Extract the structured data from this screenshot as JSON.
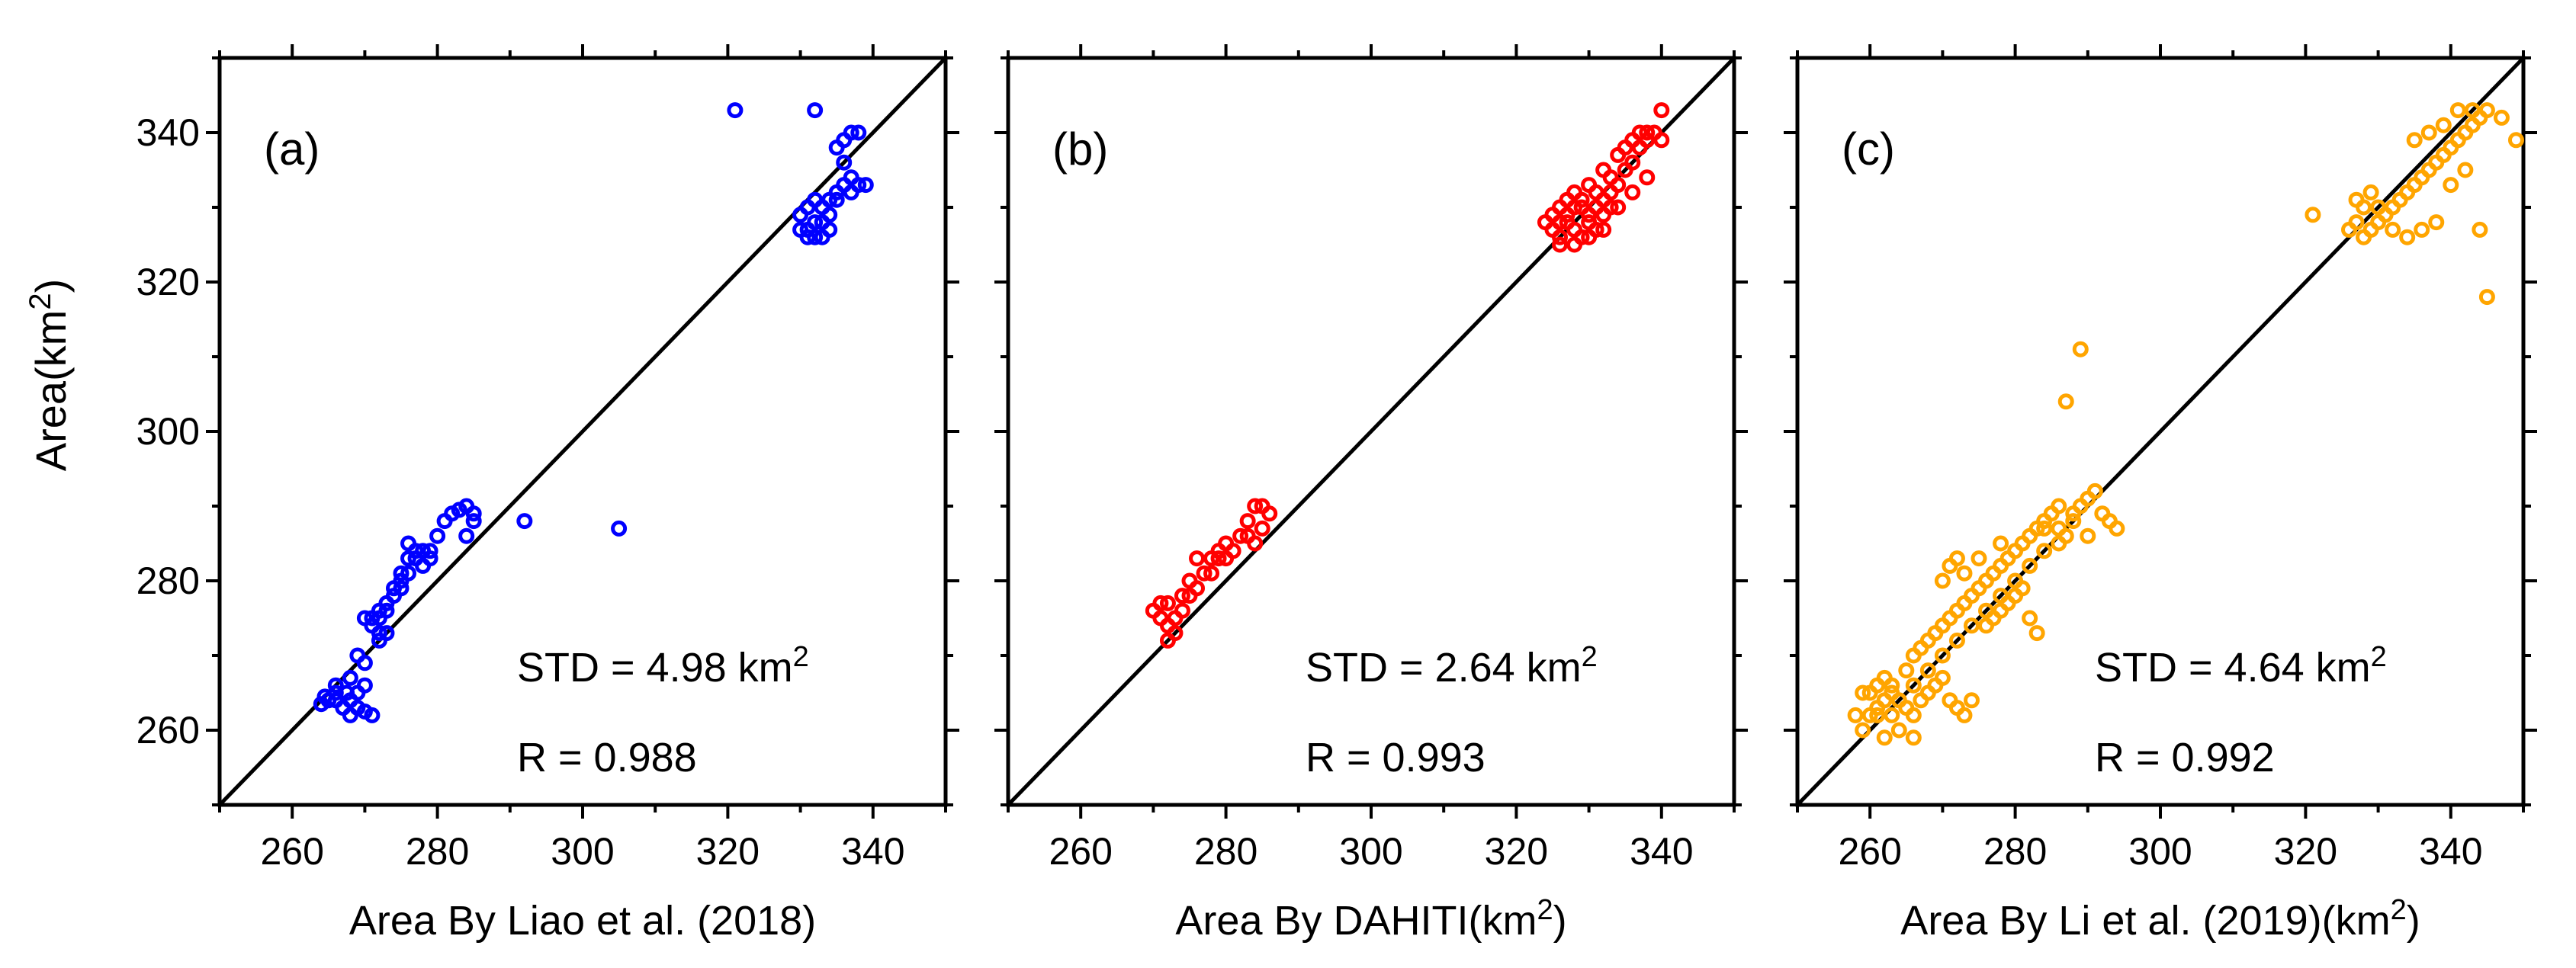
{
  "figure": {
    "ylabel_main": "Area(km",
    "ylabel_sup": "2",
    "ylabel_tail": ")"
  },
  "chart_data": [
    {
      "type": "scatter",
      "panel_label": "(a)",
      "xlabel_main": "Area By Liao et al. (2018)",
      "xlabel_sup": "",
      "xlabel_tail": "",
      "ylabel": "Area(km2)",
      "xlim": [
        250,
        350
      ],
      "ylim": [
        250,
        350
      ],
      "xticks": [
        "260",
        "280",
        "300",
        "320",
        "340"
      ],
      "yticks": [
        "260",
        "280",
        "300",
        "320",
        "340"
      ],
      "marker_color": "#0000ff",
      "stats": {
        "std_text": "STD = 4.98 km",
        "std_sup": "2",
        "r_text": "R = 0.988"
      },
      "points": [
        [
          264,
          263.5
        ],
        [
          265,
          264
        ],
        [
          266,
          265
        ],
        [
          264.5,
          264.5
        ],
        [
          267,
          263
        ],
        [
          268,
          262
        ],
        [
          269,
          263
        ],
        [
          270,
          262.5
        ],
        [
          267.5,
          265
        ],
        [
          269,
          265
        ],
        [
          270,
          266
        ],
        [
          271,
          262
        ],
        [
          268,
          267
        ],
        [
          266,
          264
        ],
        [
          272,
          272
        ],
        [
          271,
          274
        ],
        [
          272,
          276
        ],
        [
          270,
          275
        ],
        [
          273,
          273
        ],
        [
          274,
          278
        ],
        [
          275,
          280
        ],
        [
          276,
          281
        ],
        [
          277,
          283
        ],
        [
          278,
          282
        ],
        [
          279,
          284
        ],
        [
          280,
          286
        ],
        [
          282,
          289
        ],
        [
          283,
          289.5
        ],
        [
          284,
          290
        ],
        [
          285,
          289
        ],
        [
          285,
          288
        ],
        [
          276,
          285
        ],
        [
          271,
          275
        ],
        [
          272,
          275
        ],
        [
          273,
          277
        ],
        [
          274,
          279
        ],
        [
          275,
          279
        ],
        [
          277,
          284
        ],
        [
          281,
          288
        ],
        [
          284,
          286
        ],
        [
          292,
          288
        ],
        [
          305,
          287
        ],
        [
          321,
          343
        ],
        [
          332,
          343
        ],
        [
          330,
          327
        ],
        [
          331,
          326
        ],
        [
          332,
          328
        ],
        [
          333,
          330
        ],
        [
          334,
          329
        ],
        [
          332,
          331
        ],
        [
          331,
          327
        ],
        [
          330,
          329
        ],
        [
          333,
          326
        ],
        [
          334,
          327
        ],
        [
          335,
          332
        ],
        [
          336,
          333
        ],
        [
          337,
          334
        ],
        [
          338,
          333
        ],
        [
          339,
          333
        ],
        [
          335,
          338
        ],
        [
          336,
          339
        ],
        [
          337,
          340
        ],
        [
          338,
          340
        ],
        [
          336,
          336
        ],
        [
          334,
          331
        ],
        [
          331,
          330
        ],
        [
          332,
          326
        ],
        [
          333,
          328
        ],
        [
          335,
          331
        ],
        [
          337,
          332
        ],
        [
          278,
          284
        ],
        [
          279,
          283
        ],
        [
          276,
          283
        ],
        [
          273,
          276
        ],
        [
          272,
          273
        ],
        [
          270,
          269
        ],
        [
          269,
          270
        ],
        [
          266,
          266
        ],
        [
          268,
          264
        ],
        [
          275,
          281
        ]
      ]
    },
    {
      "type": "scatter",
      "panel_label": "(b)",
      "xlabel_main": "Area By DAHITI(km",
      "xlabel_sup": "2",
      "xlabel_tail": ")",
      "ylabel": "",
      "xlim": [
        250,
        350
      ],
      "ylim": [
        250,
        350
      ],
      "xticks": [
        "260",
        "280",
        "300",
        "320",
        "340"
      ],
      "yticks": [
        "260",
        "280",
        "300",
        "320",
        "340"
      ],
      "marker_color": "#ff0000",
      "stats": {
        "std_text": "STD = 2.64 km",
        "std_sup": "2",
        "r_text": "R = 0.993"
      },
      "points": [
        [
          270,
          276
        ],
        [
          271,
          275
        ],
        [
          272,
          274
        ],
        [
          273,
          273
        ],
        [
          272,
          277
        ],
        [
          274,
          278
        ],
        [
          275,
          280
        ],
        [
          276,
          279
        ],
        [
          277,
          281
        ],
        [
          278,
          283
        ],
        [
          279,
          284
        ],
        [
          280,
          285
        ],
        [
          281,
          284
        ],
        [
          282,
          286
        ],
        [
          283,
          288
        ],
        [
          284,
          290
        ],
        [
          285,
          290
        ],
        [
          286,
          289
        ],
        [
          284,
          285
        ],
        [
          280,
          283
        ],
        [
          271,
          277
        ],
        [
          273,
          275
        ],
        [
          274,
          276
        ],
        [
          275,
          278
        ],
        [
          276,
          283
        ],
        [
          278,
          281
        ],
        [
          279,
          283
        ],
        [
          283,
          286
        ],
        [
          285,
          287
        ],
        [
          272,
          272
        ],
        [
          324,
          328
        ],
        [
          325,
          327
        ],
        [
          326,
          326
        ],
        [
          327,
          328
        ],
        [
          328,
          327
        ],
        [
          329,
          326
        ],
        [
          330,
          329
        ],
        [
          331,
          330
        ],
        [
          332,
          331
        ],
        [
          333,
          332
        ],
        [
          334,
          333
        ],
        [
          335,
          335
        ],
        [
          336,
          336
        ],
        [
          337,
          338
        ],
        [
          338,
          339
        ],
        [
          339,
          340
        ],
        [
          340,
          343
        ],
        [
          326,
          330
        ],
        [
          327,
          331
        ],
        [
          328,
          332
        ],
        [
          329,
          330
        ],
        [
          330,
          328
        ],
        [
          331,
          327
        ],
        [
          332,
          329
        ],
        [
          333,
          330
        ],
        [
          325,
          329
        ],
        [
          326,
          328
        ],
        [
          327,
          329
        ],
        [
          328,
          330
        ],
        [
          329,
          331
        ],
        [
          330,
          333
        ],
        [
          331,
          332
        ],
        [
          333,
          334
        ],
        [
          335,
          338
        ],
        [
          336,
          339
        ],
        [
          337,
          340
        ],
        [
          338,
          340
        ],
        [
          340,
          339
        ],
        [
          332,
          335
        ],
        [
          334,
          337
        ],
        [
          326,
          325
        ],
        [
          328,
          325
        ],
        [
          330,
          326
        ],
        [
          332,
          327
        ],
        [
          334,
          330
        ],
        [
          336,
          332
        ],
        [
          338,
          334
        ]
      ]
    },
    {
      "type": "scatter",
      "panel_label": "(c)",
      "xlabel_main": "Area By Li et al. (2019)(km",
      "xlabel_sup": "2",
      "xlabel_tail": ")",
      "ylabel": "",
      "xlim": [
        250,
        350
      ],
      "ylim": [
        250,
        350
      ],
      "xticks": [
        "260",
        "280",
        "300",
        "320",
        "340"
      ],
      "yticks": [
        "260",
        "280",
        "300",
        "320",
        "340"
      ],
      "marker_color": "#ffa500",
      "stats": {
        "std_text": "STD = 4.64 km",
        "std_sup": "2",
        "r_text": "R = 0.992"
      },
      "points": [
        [
          259,
          260
        ],
        [
          260,
          262
        ],
        [
          261,
          263
        ],
        [
          262,
          264
        ],
        [
          263,
          262
        ],
        [
          264,
          260
        ],
        [
          260,
          265
        ],
        [
          261,
          266
        ],
        [
          262,
          267
        ],
        [
          263,
          265
        ],
        [
          264,
          264
        ],
        [
          265,
          263
        ],
        [
          266,
          262
        ],
        [
          267,
          264
        ],
        [
          268,
          265
        ],
        [
          269,
          266
        ],
        [
          270,
          267
        ],
        [
          271,
          264
        ],
        [
          272,
          263
        ],
        [
          273,
          262
        ],
        [
          274,
          264
        ],
        [
          265,
          268
        ],
        [
          266,
          270
        ],
        [
          267,
          271
        ],
        [
          268,
          272
        ],
        [
          269,
          273
        ],
        [
          270,
          274
        ],
        [
          271,
          275
        ],
        [
          272,
          276
        ],
        [
          273,
          277
        ],
        [
          274,
          278
        ],
        [
          275,
          279
        ],
        [
          276,
          280
        ],
        [
          277,
          281
        ],
        [
          278,
          282
        ],
        [
          279,
          283
        ],
        [
          280,
          284
        ],
        [
          281,
          285
        ],
        [
          282,
          286
        ],
        [
          283,
          287
        ],
        [
          284,
          288
        ],
        [
          285,
          289
        ],
        [
          286,
          287
        ],
        [
          287,
          286
        ],
        [
          288,
          288
        ],
        [
          289,
          290
        ],
        [
          290,
          291
        ],
        [
          291,
          292
        ],
        [
          292,
          289
        ],
        [
          293,
          288
        ],
        [
          276,
          274
        ],
        [
          277,
          275
        ],
        [
          278,
          276
        ],
        [
          279,
          277
        ],
        [
          280,
          278
        ],
        [
          281,
          279
        ],
        [
          282,
          275
        ],
        [
          283,
          273
        ],
        [
          270,
          280
        ],
        [
          271,
          282
        ],
        [
          272,
          283
        ],
        [
          273,
          281
        ],
        [
          284,
          287
        ],
        [
          286,
          290
        ],
        [
          288,
          289
        ],
        [
          290,
          286
        ],
        [
          294,
          287
        ],
        [
          287,
          304
        ],
        [
          289,
          311
        ],
        [
          261,
          262
        ],
        [
          263,
          266
        ],
        [
          266,
          266
        ],
        [
          268,
          268
        ],
        [
          270,
          270
        ],
        [
          272,
          272
        ],
        [
          274,
          274
        ],
        [
          276,
          276
        ],
        [
          278,
          278
        ],
        [
          280,
          280
        ],
        [
          282,
          282
        ],
        [
          284,
          284
        ],
        [
          286,
          285
        ],
        [
          262,
          259
        ],
        [
          266,
          259
        ],
        [
          258,
          262
        ],
        [
          259,
          265
        ],
        [
          275,
          283
        ],
        [
          278,
          285
        ],
        [
          321,
          329
        ],
        [
          326,
          327
        ],
        [
          327,
          328
        ],
        [
          328,
          326
        ],
        [
          329,
          327
        ],
        [
          330,
          328
        ],
        [
          331,
          329
        ],
        [
          332,
          330
        ],
        [
          333,
          331
        ],
        [
          334,
          332
        ],
        [
          335,
          333
        ],
        [
          336,
          334
        ],
        [
          337,
          335
        ],
        [
          338,
          336
        ],
        [
          339,
          337
        ],
        [
          340,
          338
        ],
        [
          341,
          339
        ],
        [
          342,
          340
        ],
        [
          343,
          341
        ],
        [
          344,
          342
        ],
        [
          345,
          343
        ],
        [
          347,
          342
        ],
        [
          349,
          339
        ],
        [
          330,
          330
        ],
        [
          332,
          327
        ],
        [
          334,
          326
        ],
        [
          336,
          327
        ],
        [
          338,
          328
        ],
        [
          340,
          333
        ],
        [
          342,
          335
        ],
        [
          344,
          327
        ],
        [
          345,
          318
        ],
        [
          335,
          339
        ],
        [
          337,
          340
        ],
        [
          339,
          341
        ],
        [
          341,
          343
        ],
        [
          343,
          343
        ],
        [
          328,
          330
        ],
        [
          329,
          332
        ],
        [
          327,
          331
        ]
      ]
    }
  ]
}
